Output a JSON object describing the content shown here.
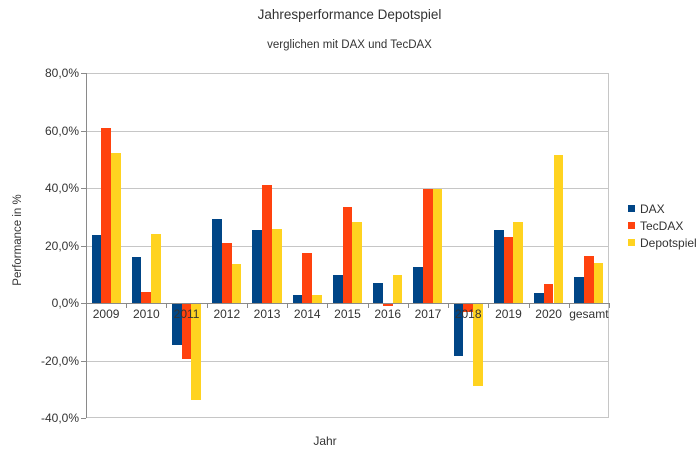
{
  "title": "Jahresperformance Depotspiel",
  "subtitle": "verglichen mit DAX und TecDAX",
  "chart_data": {
    "type": "bar",
    "title": "Jahresperformance Depotspiel",
    "subtitle": "verglichen mit DAX und TecDAX",
    "xlabel": "Jahr",
    "ylabel": "Performance in %",
    "categories": [
      "2009",
      "2010",
      "2011",
      "2012",
      "2013",
      "2014",
      "2015",
      "2016",
      "2017",
      "2018",
      "2019",
      "2020",
      "gesamt"
    ],
    "series": [
      {
        "name": "DAX",
        "color": "#004586",
        "values": [
          23.8,
          16.1,
          -14.7,
          29.1,
          25.5,
          2.7,
          9.6,
          6.9,
          12.5,
          -18.3,
          25.5,
          3.5,
          9.0
        ]
      },
      {
        "name": "TecDAX",
        "color": "#FF420E",
        "values": [
          60.8,
          4.0,
          -19.5,
          20.9,
          40.9,
          17.5,
          33.5,
          -1.0,
          39.6,
          -3.1,
          23.0,
          6.6,
          16.3
        ]
      },
      {
        "name": "Depotspiel",
        "color": "#FFD320",
        "values": [
          52.2,
          24.0,
          -33.7,
          13.6,
          25.7,
          2.8,
          28.2,
          9.8,
          39.7,
          -29.0,
          28.3,
          51.4,
          14.0
        ]
      }
    ],
    "ylim": [
      -40,
      80
    ],
    "ytick_step": 20,
    "ytick_labels": [
      "80,0%",
      "60,0%",
      "40,0%",
      "20,0%",
      "0,0%",
      "-20,0%",
      "-40,0%"
    ],
    "value_format": "percent_german",
    "grid": true,
    "legend_position": "right"
  }
}
